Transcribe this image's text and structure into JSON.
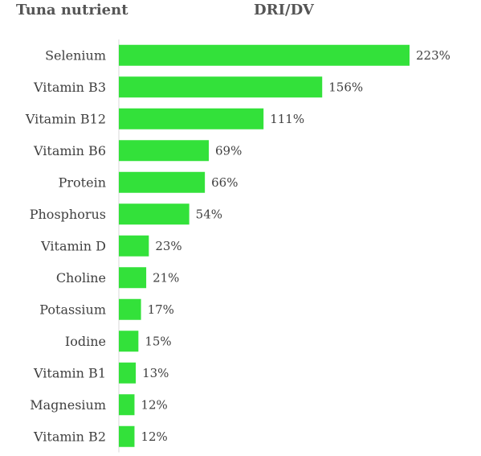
{
  "headers": {
    "left": "Tuna nutrient",
    "right": "DRI/DV"
  },
  "chart_data": {
    "type": "bar",
    "orientation": "horizontal",
    "categories": [
      "Selenium",
      "Vitamin B3",
      "Vitamin B12",
      "Vitamin B6",
      "Protein",
      "Phosphorus",
      "Vitamin D",
      "Choline",
      "Potassium",
      "Iodine",
      "Vitamin B1",
      "Magnesium",
      "Vitamin B2"
    ],
    "values": [
      223,
      156,
      111,
      69,
      66,
      54,
      23,
      21,
      17,
      15,
      13,
      12,
      12
    ],
    "value_labels": [
      "223%",
      "156%",
      "111%",
      "69%",
      "66%",
      "54%",
      "23%",
      "21%",
      "17%",
      "15%",
      "13%",
      "12%",
      "12%"
    ],
    "unit": "%",
    "bar_color": "#33e13a",
    "axis_line_color": "#d9d9d9",
    "label_color": "#404040",
    "grid": false,
    "legend": "none"
  }
}
